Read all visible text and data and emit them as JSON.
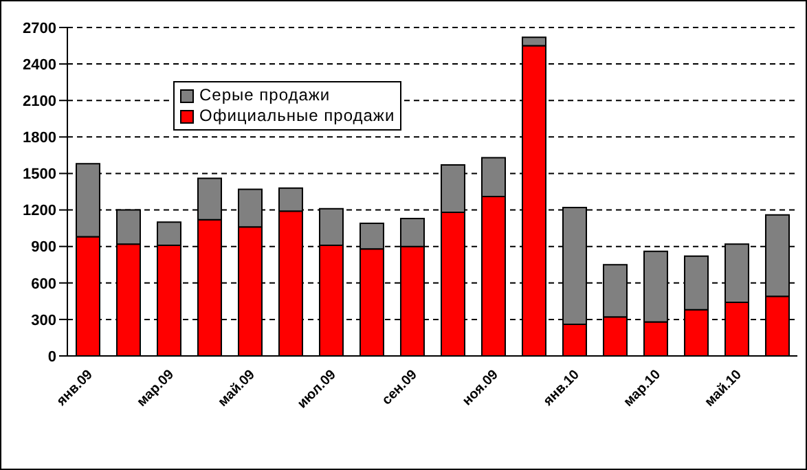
{
  "chart_data": {
    "type": "bar",
    "stacked": true,
    "categories": [
      "янв.09",
      null,
      "мар.09",
      null,
      "май.09",
      null,
      "июл.09",
      null,
      "сен.09",
      null,
      "ноя.09",
      null,
      "янв.10",
      null,
      "мар.10",
      null,
      "май.10",
      null
    ],
    "series": [
      {
        "name": "Официальные продажи",
        "color": "#ff0000",
        "values": [
          980,
          920,
          910,
          1120,
          1060,
          1190,
          910,
          880,
          900,
          1180,
          1310,
          2550,
          260,
          320,
          280,
          380,
          440,
          490
        ]
      },
      {
        "name": "Серые продажи",
        "color": "#808080",
        "values": [
          600,
          280,
          190,
          340,
          310,
          190,
          300,
          210,
          230,
          390,
          320,
          70,
          960,
          430,
          580,
          440,
          480,
          670
        ]
      }
    ],
    "ylim": [
      0,
      2700
    ],
    "yticks": [
      0,
      300,
      600,
      900,
      1200,
      1500,
      1800,
      2100,
      2400,
      2700
    ],
    "grid": "y",
    "legend": "top left"
  }
}
